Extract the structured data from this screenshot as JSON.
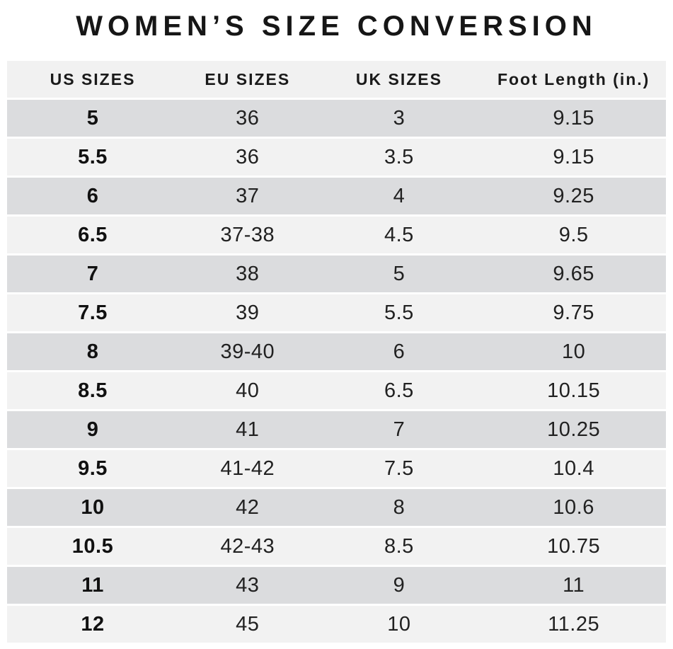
{
  "header": {
    "title": "WOMEN’S SIZE CONVERSION"
  },
  "colors": {
    "background": "#ffffff",
    "header_row_bg": "#f1f1f1",
    "row_dark": "#dbdcde",
    "row_light": "#f2f2f2",
    "text": "#1a1a1a"
  },
  "chart_data": {
    "type": "table",
    "title": "WOMEN’S SIZE CONVERSION",
    "columns": [
      "US SIZES",
      "EU SIZES",
      "UK SIZES",
      "Foot Length (in.)"
    ],
    "rows": [
      [
        "5",
        "36",
        "3",
        "9.15"
      ],
      [
        "5.5",
        "36",
        "3.5",
        "9.15"
      ],
      [
        "6",
        "37",
        "4",
        "9.25"
      ],
      [
        "6.5",
        "37-38",
        "4.5",
        "9.5"
      ],
      [
        "7",
        "38",
        "5",
        "9.65"
      ],
      [
        "7.5",
        "39",
        "5.5",
        "9.75"
      ],
      [
        "8",
        "39-40",
        "6",
        "10"
      ],
      [
        "8.5",
        "40",
        "6.5",
        "10.15"
      ],
      [
        "9",
        "41",
        "7",
        "10.25"
      ],
      [
        "9.5",
        "41-42",
        "7.5",
        "10.4"
      ],
      [
        "10",
        "42",
        "8",
        "10.6"
      ],
      [
        "10.5",
        "42-43",
        "8.5",
        "10.75"
      ],
      [
        "11",
        "43",
        "9",
        "11"
      ],
      [
        "12",
        "45",
        "10",
        "11.25"
      ]
    ],
    "layout": {
      "row_striping": "alternating dark/light gray starting dark",
      "legend": "none",
      "grid": "off"
    }
  }
}
